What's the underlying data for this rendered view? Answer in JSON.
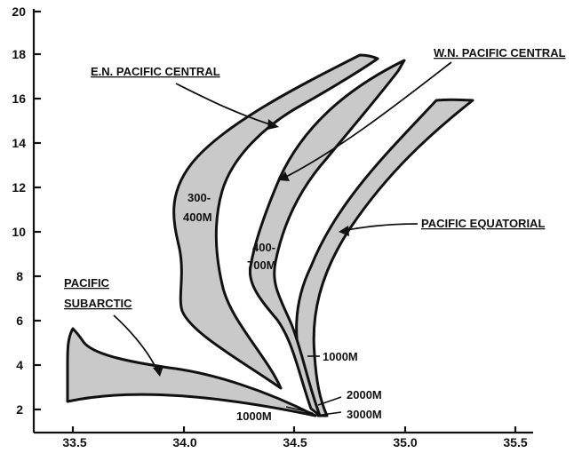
{
  "x_axis": {
    "ticks": [
      "33.5",
      "34.0",
      "34.5",
      "35.0",
      "35.5"
    ],
    "values": [
      33.5,
      34.0,
      34.5,
      35.0,
      35.5
    ],
    "range": [
      33.4,
      35.6
    ]
  },
  "y_axis": {
    "ticks": [
      "2",
      "4",
      "6",
      "8",
      "10",
      "12",
      "14",
      "16",
      "18",
      "20"
    ],
    "values": [
      2,
      4,
      6,
      8,
      10,
      12,
      14,
      16,
      18,
      20
    ],
    "range": [
      1,
      20
    ]
  },
  "labels": {
    "en_pacific_central": "E.N. PACIFIC CENTRAL",
    "wn_pacific_central": "W.N. PACIFIC CENTRAL",
    "pacific_equatorial": "PACIFIC EQUATORIAL",
    "pacific_subarctic_1": "PACIFIC",
    "pacific_subarctic_2": "SUBARCTIC",
    "depth_300_400_a": "300-",
    "depth_300_400_b": "400M",
    "depth_400_700_a": "400-",
    "depth_400_700_b": "700M",
    "depth_1000_equatorial": "1000M",
    "depth_2000": "2000M",
    "depth_3000": "3000M",
    "depth_1000_subarctic": "1000M"
  },
  "colors": {
    "band_fill": "#c9c9c9",
    "ink": "#111111"
  }
}
